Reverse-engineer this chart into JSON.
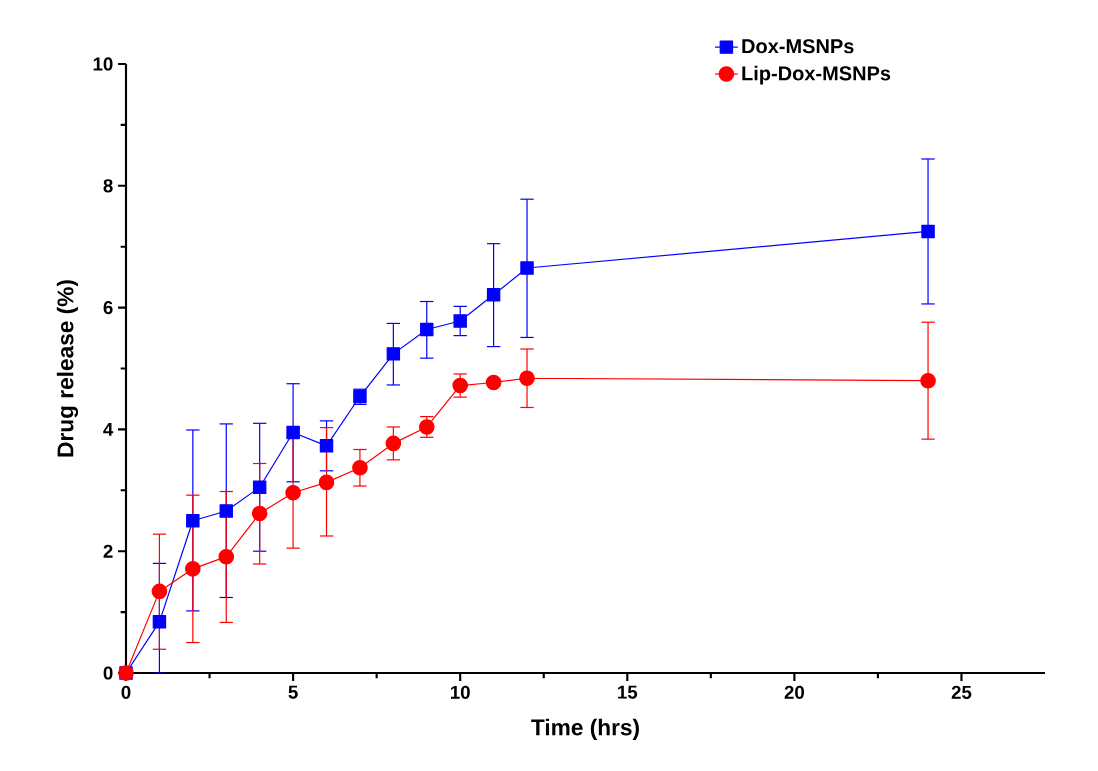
{
  "chart_data": {
    "type": "line",
    "xlabel": "Time (hrs)",
    "ylabel": "Drug release (%)",
    "xlim": [
      0,
      27.5
    ],
    "ylim": [
      0,
      10
    ],
    "xticks": [
      0,
      5,
      10,
      15,
      20,
      25
    ],
    "yticks": [
      0,
      2,
      4,
      6,
      8,
      10
    ],
    "grid": false,
    "legend": "top right",
    "line_style": "solid",
    "series": [
      {
        "name": "Dox-MSNPs",
        "color": "#0000ff",
        "marker": "square",
        "x": [
          0,
          1,
          2,
          3,
          4,
          5,
          6,
          7,
          8,
          9,
          10,
          11,
          12,
          24
        ],
        "values": [
          0,
          0.84,
          2.5,
          2.66,
          3.05,
          3.95,
          3.73,
          4.54,
          5.24,
          5.64,
          5.78,
          6.21,
          6.65,
          7.25
        ],
        "errors": [
          null,
          [
            0,
            1.8
          ],
          [
            1.02,
            3.99
          ],
          [
            1.24,
            4.09
          ],
          [
            2.0,
            4.1
          ],
          [
            3.14,
            4.75
          ],
          [
            3.32,
            4.14
          ],
          [
            4.41,
            4.66
          ],
          [
            4.73,
            5.74
          ],
          [
            5.17,
            6.1
          ],
          [
            5.54,
            6.02
          ],
          [
            5.36,
            7.05
          ],
          [
            5.51,
            7.78
          ],
          [
            6.06,
            8.44
          ]
        ]
      },
      {
        "name": "Lip-Dox-MSNPs",
        "color": "#ff0000",
        "marker": "circle",
        "x": [
          0,
          1,
          2,
          3,
          4,
          5,
          6,
          7,
          8,
          9,
          10,
          11,
          12,
          24
        ],
        "values": [
          0,
          1.34,
          1.71,
          1.91,
          2.62,
          2.96,
          3.13,
          3.37,
          3.77,
          4.04,
          4.72,
          4.77,
          4.84,
          4.8
        ],
        "errors": [
          null,
          [
            0.39,
            2.28
          ],
          [
            0.5,
            2.92
          ],
          [
            0.83,
            2.98
          ],
          [
            1.79,
            3.44
          ],
          [
            2.05,
            3.87
          ],
          [
            2.25,
            4.03
          ],
          [
            3.07,
            3.67
          ],
          [
            3.5,
            4.04
          ],
          [
            3.87,
            4.21
          ],
          [
            4.53,
            4.91
          ],
          [
            4.71,
            4.83
          ],
          [
            4.36,
            5.32
          ],
          [
            3.84,
            5.76
          ]
        ]
      }
    ]
  }
}
